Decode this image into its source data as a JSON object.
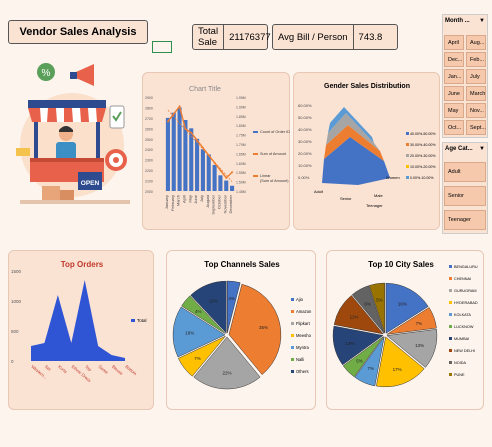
{
  "header": {
    "title": "Vendor Sales Analysis",
    "total_sale_label": "Total Sale",
    "total_sale_value": "21176377",
    "avg_bill_label": "Avg Bill / Person",
    "avg_bill_value": "743.8"
  },
  "illustration": {
    "open_sign": "OPEN",
    "percent_badge": "%"
  },
  "monthly_chart": {
    "title": "Chart Title",
    "left_ticks": [
      "2900",
      "2800",
      "2700",
      "2600",
      "2500",
      "2400",
      "2300",
      "2200",
      "2100",
      "2000"
    ],
    "right_ticks": [
      "1.95M",
      "1.90M",
      "1.85M",
      "1.80M",
      "1.75M",
      "1.70M",
      "1.65M",
      "1.60M",
      "1.55M",
      "1.50M",
      "1.45M"
    ],
    "legend": [
      "Count of Order ID",
      "Sum of Amount",
      "Linear (Sum of Amount)"
    ],
    "months": [
      "January",
      "February",
      "March",
      "April",
      "May",
      "June",
      "July",
      "August",
      "September",
      "October",
      "November",
      "December"
    ],
    "count_values": [
      2700,
      2750,
      2800,
      2680,
      2600,
      2500,
      2400,
      2350,
      2250,
      2150,
      2100,
      2050
    ],
    "amount_values": [
      1.82,
      1.86,
      1.9,
      1.78,
      1.76,
      1.72,
      1.68,
      1.64,
      1.6,
      1.56,
      1.52,
      1.55
    ],
    "colors": {
      "bars": "#4472c4",
      "line": "#ed7d31",
      "trend": "#ed7d31"
    }
  },
  "gender_chart": {
    "title": "Gender Sales Distribution",
    "y_ticks": [
      "60.00%",
      "50.00%",
      "40.00%",
      "30.00%",
      "20.00%",
      "10.00%",
      "0.00%"
    ],
    "x_labels": [
      "Adult",
      "Senior",
      "Teenager"
    ],
    "z_labels": [
      "Women",
      "Male"
    ],
    "legend": [
      "40.00%-50.00%",
      "30.00%-40.00%",
      "20.00%-30.00%",
      "10.00%-20.00%",
      "0.00%-10.00%"
    ]
  },
  "slicer_month": {
    "title": "Month ...",
    "items": [
      "April",
      "Aug...",
      "Dec...",
      "Feb...",
      "Jan...",
      "July",
      "June",
      "March",
      "May",
      "Nov...",
      "Oct...",
      "Sept..."
    ]
  },
  "slicer_age": {
    "title": "Age Cat...",
    "items": [
      "Adult",
      "Senior",
      "Teenager"
    ]
  },
  "top_orders": {
    "title": "Top Orders",
    "y_ticks": [
      "1500",
      "1000",
      "500",
      "0"
    ],
    "categories": [
      "Western...",
      "Set",
      "Kurta",
      "Ethnic Dress",
      "Top",
      "Saree",
      "Blouse",
      "Bottom"
    ],
    "values": [
      250,
      300,
      1100,
      300,
      1350,
      250,
      100,
      50
    ],
    "legend": "Total",
    "color": "#2f55d4"
  },
  "channels_chart": {
    "title": "Top Channels Sales",
    "labels": [
      "Ajio",
      "Amazon",
      "Flipkart",
      "Meesho",
      "Myntra",
      "Nalli",
      "Others"
    ],
    "values": [
      4,
      35,
      22,
      7,
      16,
      4,
      12
    ],
    "display_labels": [
      "4%",
      "35%",
      "22%",
      "7%",
      "16%",
      "4%",
      "12%"
    ],
    "colors": [
      "#4472c4",
      "#ed7d31",
      "#a5a5a5",
      "#ffc000",
      "#5b9bd5",
      "#70ad47",
      "#264478"
    ]
  },
  "city_chart": {
    "title": "Top 10 City Sales",
    "labels": [
      "BENGALURU",
      "CHENNAI",
      "GURUGRAM",
      "HYDERABAD",
      "KOLKATA",
      "LUCKNOW",
      "MUMBAI",
      "NEW DELHI",
      "NOIDA",
      "PUNE"
    ],
    "values": [
      16,
      7,
      13,
      17,
      7,
      5,
      13,
      11,
      6,
      5
    ],
    "display_labels": [
      "16%",
      "7%",
      "13%",
      "17%",
      "7%",
      "5%",
      "13%",
      "11%",
      "6%",
      "5%"
    ],
    "colors": [
      "#4472c4",
      "#ed7d31",
      "#a5a5a5",
      "#ffc000",
      "#5b9bd5",
      "#70ad47",
      "#264478",
      "#9e480e",
      "#636363",
      "#997300"
    ]
  }
}
